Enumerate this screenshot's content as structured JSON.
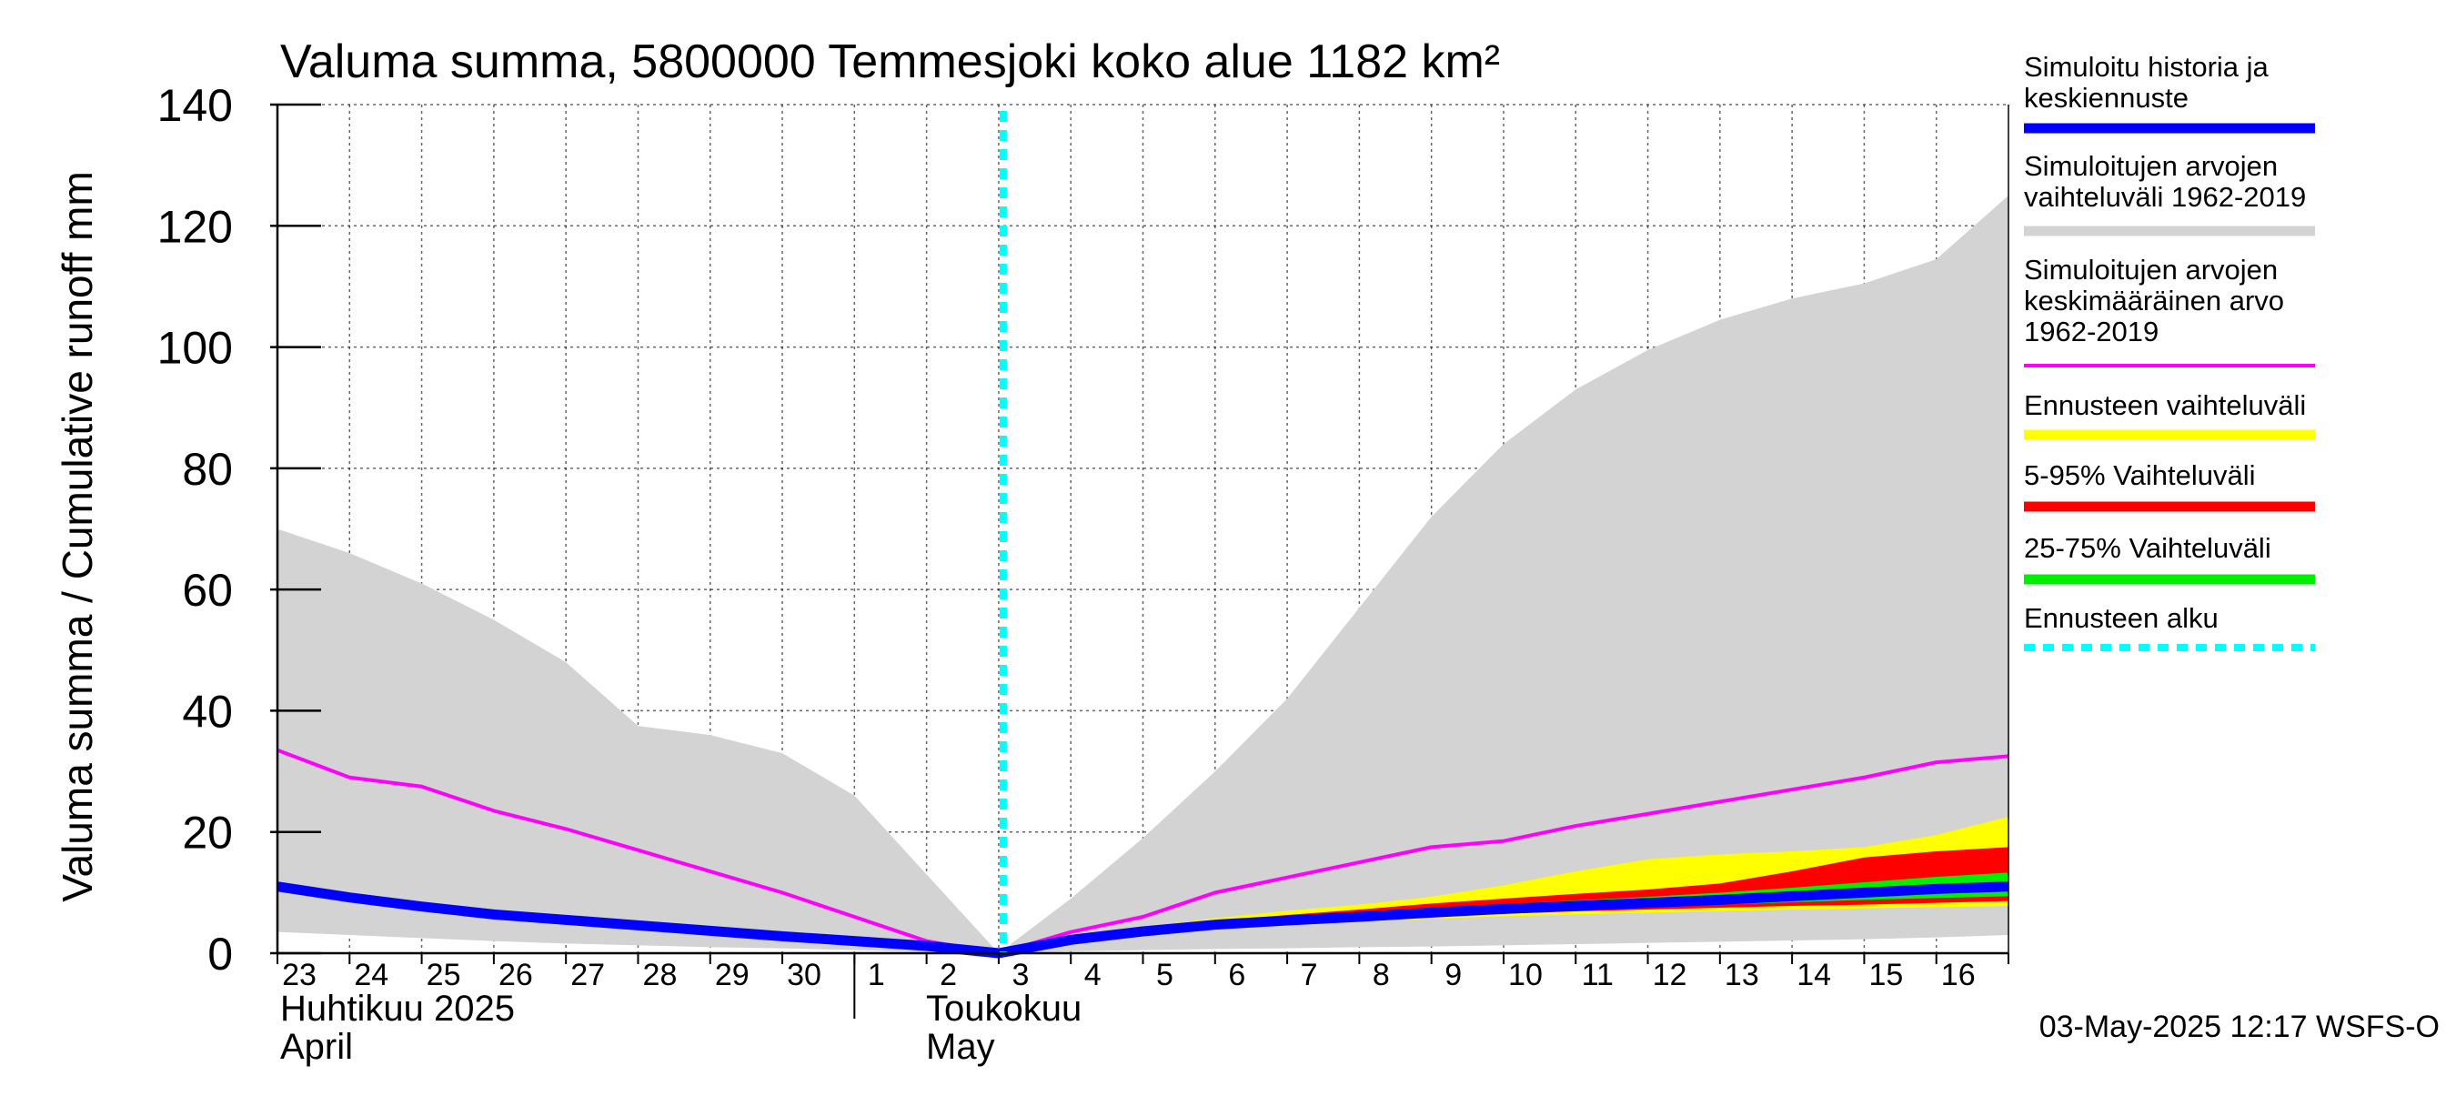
{
  "chart_data": {
    "type": "area",
    "title": "Valuma summa, 5800000 Temmesjoki koko alue 1182 km²",
    "ylabel": "Valuma summa / Cumulative runoff    mm",
    "ylim": [
      0,
      140
    ],
    "yticks": [
      0,
      20,
      40,
      60,
      80,
      100,
      120,
      140
    ],
    "xlim": [
      "2025-04-23",
      "2025-05-17"
    ],
    "x_tick_labels": [
      "23",
      "24",
      "25",
      "26",
      "27",
      "28",
      "29",
      "30",
      "1",
      "2",
      "3",
      "4",
      "5",
      "6",
      "7",
      "8",
      "9",
      "10",
      "11",
      "12",
      "13",
      "14",
      "15",
      "16"
    ],
    "month_labels": [
      {
        "fi": "Huhtikuu  2025",
        "en": "April"
      },
      {
        "fi": "Toukokuu",
        "en": "May"
      }
    ],
    "grid": true,
    "legend_position": "right",
    "forecast_start": "2025-05-03",
    "timestamp": "03-May-2025 12:17 WSFS-O",
    "series": [
      {
        "name": "Simuloitujen arvojen vaihteluväli 1962-2019",
        "kind": "band",
        "color": "#d3d3d3",
        "x": [
          "2025-04-23",
          "2025-04-24",
          "2025-04-25",
          "2025-04-26",
          "2025-04-27",
          "2025-04-28",
          "2025-04-29",
          "2025-04-30",
          "2025-05-01",
          "2025-05-02",
          "2025-05-03",
          "2025-05-04",
          "2025-05-05",
          "2025-05-06",
          "2025-05-07",
          "2025-05-08",
          "2025-05-09",
          "2025-05-10",
          "2025-05-11",
          "2025-05-12",
          "2025-05-13",
          "2025-05-14",
          "2025-05-15",
          "2025-05-16",
          "2025-05-17"
        ],
        "upper": [
          70,
          66,
          61,
          55,
          48,
          37.5,
          36,
          33,
          26,
          13,
          0,
          9,
          19,
          30,
          42,
          57,
          72,
          84,
          93,
          99.5,
          104.5,
          108,
          110.5,
          114.5,
          125
        ],
        "lower": [
          3.5,
          3,
          2.5,
          2,
          1.6,
          1.3,
          1,
          0.8,
          0.5,
          0.2,
          0,
          0.3,
          0.5,
          0.7,
          0.8,
          1,
          1.1,
          1.3,
          1.5,
          1.7,
          1.9,
          2.1,
          2.3,
          2.6,
          3
        ]
      },
      {
        "name": "Ennusteen vaihteluväli",
        "kind": "band",
        "color": "#ffff00",
        "x": [
          "2025-05-03",
          "2025-05-04",
          "2025-05-05",
          "2025-05-06",
          "2025-05-07",
          "2025-05-08",
          "2025-05-09",
          "2025-05-10",
          "2025-05-11",
          "2025-05-12",
          "2025-05-13",
          "2025-05-14",
          "2025-05-15",
          "2025-05-16",
          "2025-05-17"
        ],
        "upper": [
          0,
          2.5,
          4.3,
          5.8,
          7,
          8,
          9.3,
          11.2,
          13.5,
          15.5,
          16.3,
          16.8,
          17.5,
          19.5,
          22.5
        ],
        "lower": [
          0,
          2,
          3.3,
          4.2,
          4.8,
          5.2,
          5.7,
          6.1,
          6.4,
          6.7,
          7,
          7.2,
          7.4,
          7.6,
          7.8
        ]
      },
      {
        "name": "5-95% Vaihteluväli",
        "kind": "band",
        "color": "#ff0000",
        "x": [
          "2025-05-03",
          "2025-05-04",
          "2025-05-05",
          "2025-05-06",
          "2025-05-07",
          "2025-05-08",
          "2025-05-09",
          "2025-05-10",
          "2025-05-11",
          "2025-05-12",
          "2025-05-13",
          "2025-05-14",
          "2025-05-15",
          "2025-05-16",
          "2025-05-17"
        ],
        "upper": [
          0,
          2.3,
          4,
          5.3,
          6.3,
          7.2,
          8.2,
          9,
          9.8,
          10.5,
          11.5,
          13.5,
          15.8,
          16.8,
          17.5
        ],
        "lower": [
          0,
          2.1,
          3.4,
          4.4,
          5,
          5.5,
          6,
          6.5,
          6.9,
          7.2,
          7.5,
          7.8,
          8,
          8.3,
          8.6
        ]
      },
      {
        "name": "25-75% Vaihteluväli",
        "kind": "band",
        "color": "#00ee00",
        "x": [
          "2025-05-03",
          "2025-05-04",
          "2025-05-05",
          "2025-05-06",
          "2025-05-07",
          "2025-05-08",
          "2025-05-09",
          "2025-05-10",
          "2025-05-11",
          "2025-05-12",
          "2025-05-13",
          "2025-05-14",
          "2025-05-15",
          "2025-05-16",
          "2025-05-17"
        ],
        "upper": [
          0,
          2.2,
          3.8,
          4.9,
          5.8,
          6.6,
          7.4,
          8.1,
          8.7,
          9.3,
          10,
          10.8,
          11.7,
          12.6,
          13.3
        ],
        "lower": [
          0,
          2.1,
          3.5,
          4.5,
          5.2,
          5.8,
          6.3,
          6.8,
          7.2,
          7.6,
          8,
          8.4,
          8.8,
          9.1,
          9.4
        ]
      },
      {
        "name": "Simuloitujen arvojen keskimääräinen arvo 1962-2019",
        "kind": "line",
        "color": "#ff00ff",
        "x": [
          "2025-04-23",
          "2025-04-24",
          "2025-04-25",
          "2025-04-26",
          "2025-04-27",
          "2025-04-28",
          "2025-04-29",
          "2025-04-30",
          "2025-05-01",
          "2025-05-02",
          "2025-05-03",
          "2025-05-04",
          "2025-05-05",
          "2025-05-06",
          "2025-05-07",
          "2025-05-08",
          "2025-05-09",
          "2025-05-10",
          "2025-05-11",
          "2025-05-12",
          "2025-05-13",
          "2025-05-14",
          "2025-05-15",
          "2025-05-16",
          "2025-05-17"
        ],
        "values": [
          33.5,
          29,
          27.5,
          23.5,
          20.5,
          17,
          13.5,
          10,
          6,
          2,
          0,
          3.5,
          6,
          10,
          12.5,
          15,
          17.5,
          18.5,
          21,
          23,
          25,
          27,
          29,
          31.5,
          32.5
        ]
      },
      {
        "name": "Simuloitu historia ja keskiennuste",
        "kind": "line",
        "color": "#0000ff",
        "x": [
          "2025-04-23",
          "2025-04-24",
          "2025-04-25",
          "2025-04-26",
          "2025-04-27",
          "2025-04-28",
          "2025-04-29",
          "2025-04-30",
          "2025-05-01",
          "2025-05-02",
          "2025-05-03",
          "2025-05-04",
          "2025-05-05",
          "2025-05-06",
          "2025-05-07",
          "2025-05-08",
          "2025-05-09",
          "2025-05-10",
          "2025-05-11",
          "2025-05-12",
          "2025-05-13",
          "2025-05-14",
          "2025-05-15",
          "2025-05-16",
          "2025-05-17"
        ],
        "values": [
          11,
          9.2,
          7.7,
          6.4,
          5.5,
          4.6,
          3.7,
          2.8,
          2,
          1.2,
          0,
          2.2,
          3.6,
          4.7,
          5.4,
          6,
          6.7,
          7.3,
          7.8,
          8.3,
          8.8,
          9.4,
          10,
          10.6,
          11
        ]
      }
    ],
    "legend": [
      {
        "lines": [
          "Simuloitu historia ja",
          "keskiennuste"
        ],
        "color": "#0000ff",
        "style": "solid"
      },
      {
        "lines": [
          "Simuloitujen arvojen",
          "vaihteluväli 1962-2019"
        ],
        "color": "#d3d3d3",
        "style": "solid"
      },
      {
        "lines": [
          "Simuloitujen arvojen",
          "keskimääräinen arvo",
          "   1962-2019"
        ],
        "color": "#ff00ff",
        "style": "thin"
      },
      {
        "lines": [
          "Ennusteen vaihteluväli"
        ],
        "color": "#ffff00",
        "style": "solid"
      },
      {
        "lines": [
          "5-95% Vaihteluväli"
        ],
        "color": "#ff0000",
        "style": "solid"
      },
      {
        "lines": [
          "25-75% Vaihteluväli"
        ],
        "color": "#00ee00",
        "style": "solid"
      },
      {
        "lines": [
          "Ennusteen alku"
        ],
        "color": "#00ffff",
        "style": "dashed"
      }
    ]
  }
}
